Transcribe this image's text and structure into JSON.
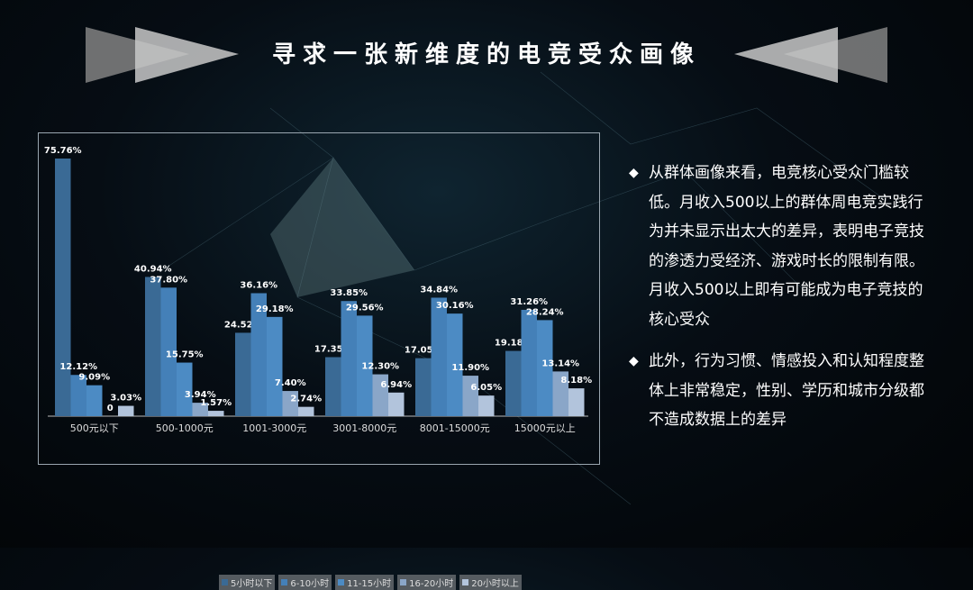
{
  "title": "寻求一张新维度的电竞受众画像",
  "colors": {
    "series": [
      "#3a6a95",
      "#4480b8",
      "#4c8bc4",
      "#8aa6c8",
      "#b2c4dc"
    ]
  },
  "chart_data": {
    "type": "bar",
    "categories": [
      "500元以下",
      "500-1000元",
      "1001-3000元",
      "3001-8000元",
      "8001-15000元",
      "15000元以上"
    ],
    "series": [
      {
        "name": "5小时以下",
        "values": [
          75.76,
          40.94,
          24.52,
          17.35,
          17.05,
          19.18
        ]
      },
      {
        "name": "6-10小时",
        "values": [
          12.12,
          37.8,
          36.16,
          33.85,
          34.84,
          31.26
        ]
      },
      {
        "name": "11-15小时",
        "values": [
          9.09,
          15.75,
          29.18,
          29.56,
          30.16,
          28.24
        ]
      },
      {
        "name": "16-20小时",
        "values": [
          0,
          3.94,
          7.4,
          12.3,
          11.9,
          13.14
        ]
      },
      {
        "name": "20小时以上",
        "values": [
          3.03,
          1.57,
          2.74,
          6.94,
          6.05,
          8.18
        ]
      }
    ],
    "labels": [
      [
        "75.76%",
        "40.94%",
        "24.52%",
        "17.35%",
        "17.05%",
        "19.18%"
      ],
      [
        "12.12%",
        "37.80%",
        "36.16%",
        "33.85%",
        "34.84%",
        "31.26%"
      ],
      [
        "9.09%",
        "15.75%",
        "29.18%",
        "29.56%",
        "30.16%",
        "28.24%"
      ],
      [
        "0",
        "3.94%",
        "7.40%",
        "12.30%",
        "11.90%",
        "13.14%"
      ],
      [
        "3.03%",
        "1.57%",
        "2.74%",
        "6.94%",
        "6.05%",
        "8.18%"
      ]
    ],
    "ylim": [
      0,
      80
    ],
    "legend": "bottom",
    "grid": false
  },
  "bullets": [
    "从群体画像来看，电竞核心受众门槛较低。月收入500以上的群体周电竞实践行为并未显示出太大的差异，表明电子竞技的渗透力受经济、游戏时长的限制有限。月收入500以上即有可能成为电子竞技的核心受众",
    "此外，行为习惯、情感投入和认知程度整体上非常稳定，性别、学历和城市分级都不造成数据上的差异"
  ],
  "bullet_symbol": "◆"
}
